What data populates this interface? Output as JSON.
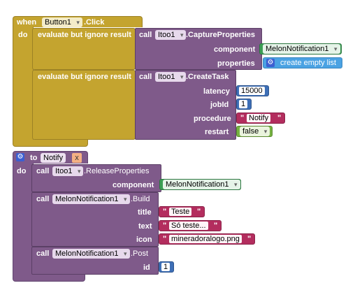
{
  "event_block": {
    "when": "when",
    "component": "Button1",
    "event": ".Click",
    "do": "do",
    "statement1": {
      "label": "evaluate but ignore result",
      "call": "call",
      "component": "Itoo1",
      "method": ".CaptureProperties",
      "params": [
        {
          "name": "component",
          "value": "MelonNotification1"
        },
        {
          "name": "properties",
          "value": "create empty list"
        }
      ]
    },
    "statement2": {
      "label": "evaluate but ignore result",
      "call": "call",
      "component": "Itoo1",
      "method": ".CreateTask",
      "params": [
        {
          "name": "latency",
          "value": "15000"
        },
        {
          "name": "jobId",
          "value": "1"
        },
        {
          "name": "procedure",
          "value": "Notify"
        },
        {
          "name": "restart",
          "value": "false"
        }
      ]
    }
  },
  "procedure_block": {
    "to": "to",
    "name": "Notify",
    "do": "do",
    "call1": {
      "call": "call",
      "component": "Itoo1",
      "method": ".ReleaseProperties",
      "params": [
        {
          "name": "component",
          "value": "MelonNotification1"
        }
      ]
    },
    "call2": {
      "call": "call",
      "component": "MelonNotification1",
      "method": ".Build",
      "params": [
        {
          "name": "title",
          "value": "Teste"
        },
        {
          "name": "text",
          "value": "Só teste..."
        },
        {
          "name": "icon",
          "value": "mineradoralogo.png"
        }
      ]
    },
    "call3": {
      "call": "call",
      "component": "MelonNotification1",
      "method": ".Post",
      "params": [
        {
          "name": "id",
          "value": "1"
        }
      ]
    }
  },
  "colors": {
    "event": "#c4a42f",
    "procedure": "#7f5a8a",
    "math": "#3e6fb6",
    "text": "#b32d5e",
    "component": "#3c9e55",
    "logic": "#76b241",
    "list": "#4aa2e3"
  }
}
